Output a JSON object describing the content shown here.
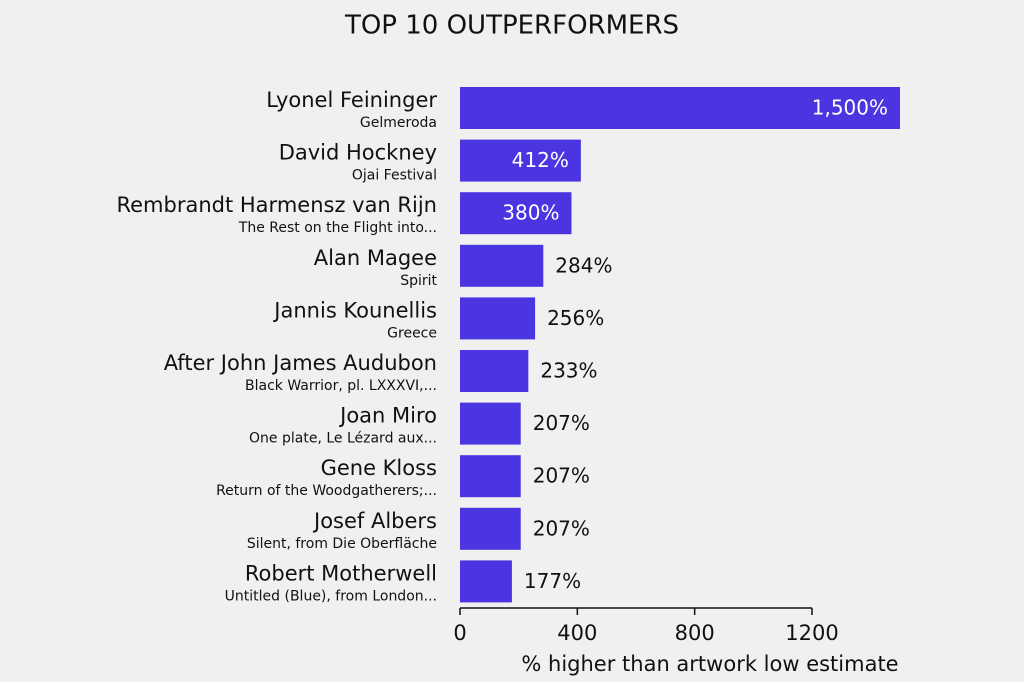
{
  "chart_data": {
    "type": "bar",
    "orientation": "horizontal",
    "title": "TOP 10 OUTPERFORMERS",
    "categories": [
      "Lyonel Feininger",
      "David Hockney",
      "Rembrandt Harmensz van Rijn",
      "Alan Magee",
      "Jannis Kounellis",
      "After John James Audubon",
      "Joan Miro",
      "Gene Kloss",
      "Josef Albers",
      "Robert Motherwell"
    ],
    "sublabels": [
      "Gelmeroda",
      "Ojai Festival",
      "The Rest on the Flight into...",
      "Spirit",
      "Greece",
      "Black Warrior, pl. LXXXVI,...",
      "One plate, Le Lézard aux...",
      "Return of the Woodgatherers;...",
      "Silent, from Die Oberfläche",
      "Untitled (Blue), from London..."
    ],
    "values": [
      1500,
      412,
      380,
      284,
      256,
      233,
      207,
      207,
      207,
      177
    ],
    "value_labels": [
      "1,500%",
      "412%",
      "380%",
      "284%",
      "256%",
      "233%",
      "207%",
      "207%",
      "207%",
      "177%"
    ],
    "color": "#4a35e0",
    "xlim": [
      0,
      1200
    ],
    "xticks": [
      0,
      400,
      800,
      1200
    ],
    "xlabel": "% higher than artwork low estimate"
  }
}
